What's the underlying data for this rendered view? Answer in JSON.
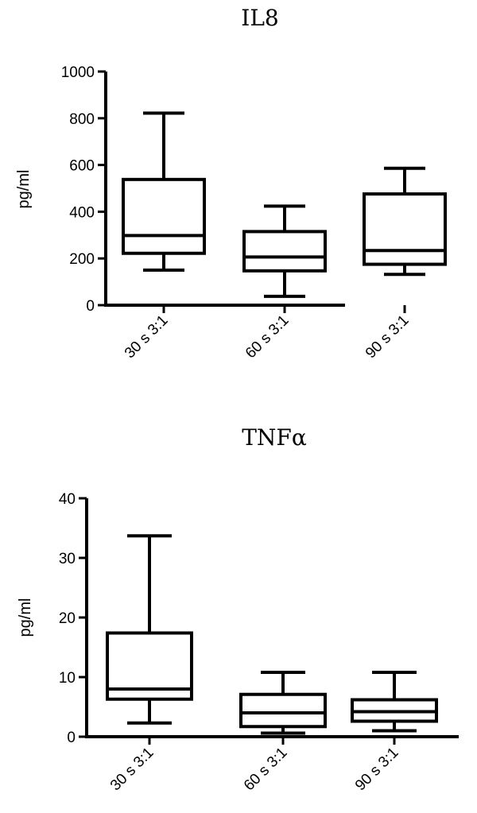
{
  "chart_data": [
    {
      "type": "box",
      "title": "IL8",
      "xlabel": "",
      "ylabel": "pg/ml",
      "ylim": [
        0,
        1000
      ],
      "yticks": [
        "0",
        "200",
        "400",
        "600",
        "800",
        "1000"
      ],
      "categories": [
        "30 s 3:1",
        "60 s 3:1",
        "90 s 3:1"
      ],
      "boxes": [
        {
          "min": 150,
          "q1": 222,
          "median": 298,
          "q3": 538,
          "max": 822
        },
        {
          "min": 38,
          "q1": 147,
          "median": 206,
          "q3": 315,
          "max": 424
        },
        {
          "min": 132,
          "q1": 175,
          "median": 234,
          "q3": 476,
          "max": 586
        }
      ]
    },
    {
      "type": "box",
      "title": "TNFα",
      "xlabel": "",
      "ylabel": "pg/ml",
      "ylim": [
        0,
        40
      ],
      "yticks": [
        "0",
        "10",
        "20",
        "30",
        "40"
      ],
      "categories": [
        "30 s 3:1",
        "60 s 3:1",
        "90 s 3:1"
      ],
      "boxes": [
        {
          "min": 2.3,
          "q1": 6.3,
          "median": 8.0,
          "q3": 17.4,
          "max": 33.7
        },
        {
          "min": 0.6,
          "q1": 1.7,
          "median": 4.0,
          "q3": 7.1,
          "max": 10.8
        },
        {
          "min": 1.0,
          "q1": 2.6,
          "median": 4.2,
          "q3": 6.2,
          "max": 10.8
        }
      ]
    }
  ]
}
